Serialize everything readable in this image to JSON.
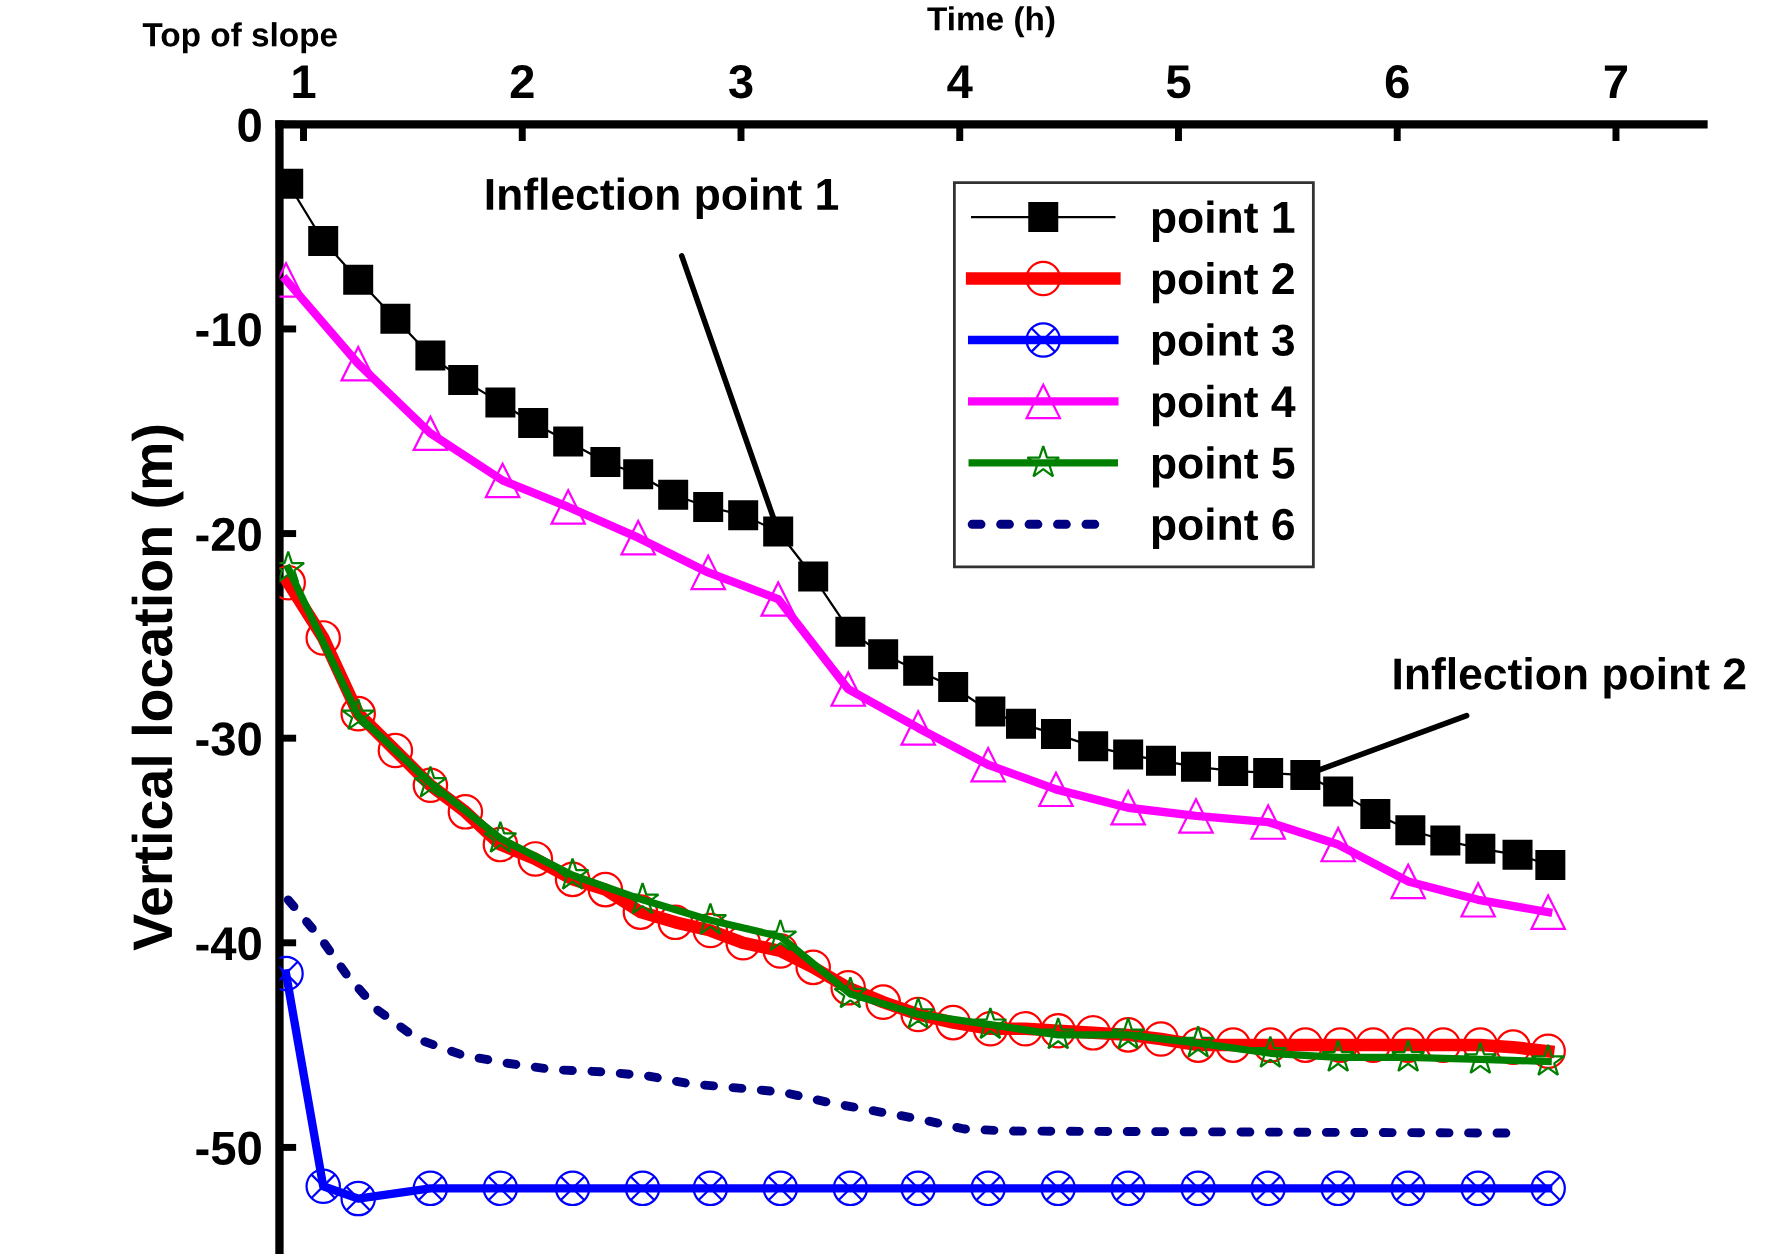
{
  "chart_data": {
    "type": "line",
    "xlabel": "Time (h)",
    "ylabel": "Vertical location (m)",
    "annotations": [
      "Top of slope",
      {
        "text": "Inflection point 1",
        "x": 3.17,
        "y": -19.9
      },
      {
        "text": "Inflection point 2",
        "x": 5.58,
        "y": -31.8
      }
    ],
    "xlim": [
      0.89,
      7.4
    ],
    "xticks": [
      1,
      2,
      3,
      4,
      5,
      6,
      7
    ],
    "ylim": [
      -55,
      0
    ],
    "yticks": [
      0,
      -10,
      -20,
      -30,
      -40,
      -50
    ],
    "legend": "top",
    "grid": false,
    "series": [
      {
        "name": "point 1",
        "color": "#000000",
        "marker": "square",
        "line_style": "solid",
        "x": [
          0.93,
          1.09,
          1.25,
          1.42,
          1.58,
          1.73,
          1.9,
          2.05,
          2.21,
          2.38,
          2.53,
          2.69,
          2.85,
          3.01,
          3.17,
          3.33,
          3.5,
          3.65,
          3.81,
          3.97,
          4.14,
          4.28,
          4.44,
          4.61,
          4.77,
          4.92,
          5.08,
          5.25,
          5.41,
          5.58,
          5.73,
          5.9,
          6.06,
          6.22,
          6.38,
          6.55,
          6.7
        ],
        "values": [
          -2.9,
          -5.7,
          -7.6,
          -9.5,
          -11.3,
          -12.5,
          -13.6,
          -14.6,
          -15.5,
          -16.5,
          -17.1,
          -18.1,
          -18.7,
          -19.1,
          -19.9,
          -22.1,
          -24.8,
          -25.9,
          -26.7,
          -27.5,
          -28.7,
          -29.3,
          -29.8,
          -30.4,
          -30.8,
          -31.1,
          -31.4,
          -31.6,
          -31.7,
          -31.8,
          -32.6,
          -33.7,
          -34.5,
          -35.0,
          -35.4,
          -35.7,
          -36.2
        ]
      },
      {
        "name": "point 2",
        "color": "#ff0000",
        "marker": "circle",
        "line_style": "solid",
        "x": [
          0.93,
          1.09,
          1.25,
          1.42,
          1.58,
          1.74,
          1.9,
          2.06,
          2.23,
          2.38,
          2.54,
          2.7,
          2.86,
          3.01,
          3.18,
          3.33,
          3.49,
          3.65,
          3.81,
          3.97,
          4.14,
          4.3,
          4.45,
          4.61,
          4.77,
          4.92,
          5.09,
          5.25,
          5.42,
          5.58,
          5.74,
          5.89,
          6.05,
          6.21,
          6.38,
          6.53,
          6.69
        ],
        "values": [
          -22.4,
          -25.1,
          -28.8,
          -30.6,
          -32.3,
          -33.6,
          -35.2,
          -35.9,
          -36.9,
          -37.4,
          -38.5,
          -39.0,
          -39.4,
          -40.0,
          -40.4,
          -41.2,
          -42.2,
          -42.9,
          -43.5,
          -43.9,
          -44.2,
          -44.2,
          -44.3,
          -44.4,
          -44.5,
          -44.7,
          -45.0,
          -45.0,
          -45.0,
          -45.0,
          -45.0,
          -45.0,
          -45.0,
          -45.0,
          -45.0,
          -45.1,
          -45.3
        ]
      },
      {
        "name": "point 3",
        "color": "#0000ff",
        "marker": "cross",
        "line_style": "solid",
        "x": [
          0.92,
          1.09,
          1.25,
          1.58,
          1.9,
          2.23,
          2.55,
          2.86,
          3.18,
          3.5,
          3.81,
          4.13,
          4.45,
          4.77,
          5.09,
          5.41,
          5.73,
          6.05,
          6.37,
          6.69
        ],
        "values": [
          -41.5,
          -51.9,
          -52.5,
          -52.0,
          -52.0,
          -52.0,
          -52.0,
          -52.0,
          -52.0,
          -52.0,
          -52.0,
          -52.0,
          -52.0,
          -52.0,
          -52.0,
          -52.0,
          -52.0,
          -52.0,
          -52.0,
          -52.0
        ]
      },
      {
        "name": "point 4",
        "color": "#ff00ff",
        "marker": "triangle",
        "line_style": "solid",
        "x": [
          0.92,
          1.25,
          1.58,
          1.91,
          2.21,
          2.53,
          2.85,
          3.17,
          3.49,
          3.81,
          4.13,
          4.44,
          4.77,
          5.08,
          5.41,
          5.73,
          6.05,
          6.37,
          6.69
        ],
        "values": [
          -7.6,
          -11.7,
          -15.1,
          -17.4,
          -18.7,
          -20.2,
          -21.9,
          -23.2,
          -27.6,
          -29.5,
          -31.3,
          -32.5,
          -33.4,
          -33.8,
          -34.1,
          -35.2,
          -37.0,
          -37.9,
          -38.5
        ]
      },
      {
        "name": "point 5",
        "color": "#008000",
        "marker": "star",
        "line_style": "solid",
        "x": [
          0.93,
          1.25,
          1.58,
          1.9,
          2.23,
          2.55,
          2.86,
          3.18,
          3.5,
          3.81,
          4.14,
          4.45,
          4.77,
          5.09,
          5.42,
          5.73,
          6.05,
          6.38,
          6.69
        ],
        "values": [
          -21.7,
          -28.9,
          -32.2,
          -34.9,
          -36.7,
          -37.9,
          -38.9,
          -39.7,
          -42.5,
          -43.5,
          -44.0,
          -44.5,
          -44.5,
          -44.9,
          -45.4,
          -45.6,
          -45.6,
          -45.7,
          -45.8
        ]
      },
      {
        "name": "point 6",
        "color": "#000080",
        "marker": "none",
        "line_style": "dotted",
        "x": [
          0.93,
          1.08,
          1.2,
          1.34,
          1.52,
          1.73,
          1.94,
          2.14,
          2.36,
          2.57,
          2.77,
          2.99,
          3.19,
          3.4,
          3.6,
          3.81,
          4.02,
          4.23,
          6.53
        ],
        "values": [
          -37.9,
          -39.8,
          -41.6,
          -43.3,
          -44.7,
          -45.5,
          -45.9,
          -46.2,
          -46.3,
          -46.5,
          -46.9,
          -47.1,
          -47.3,
          -47.8,
          -48.2,
          -48.6,
          -49.1,
          -49.2,
          -49.3
        ]
      }
    ]
  }
}
